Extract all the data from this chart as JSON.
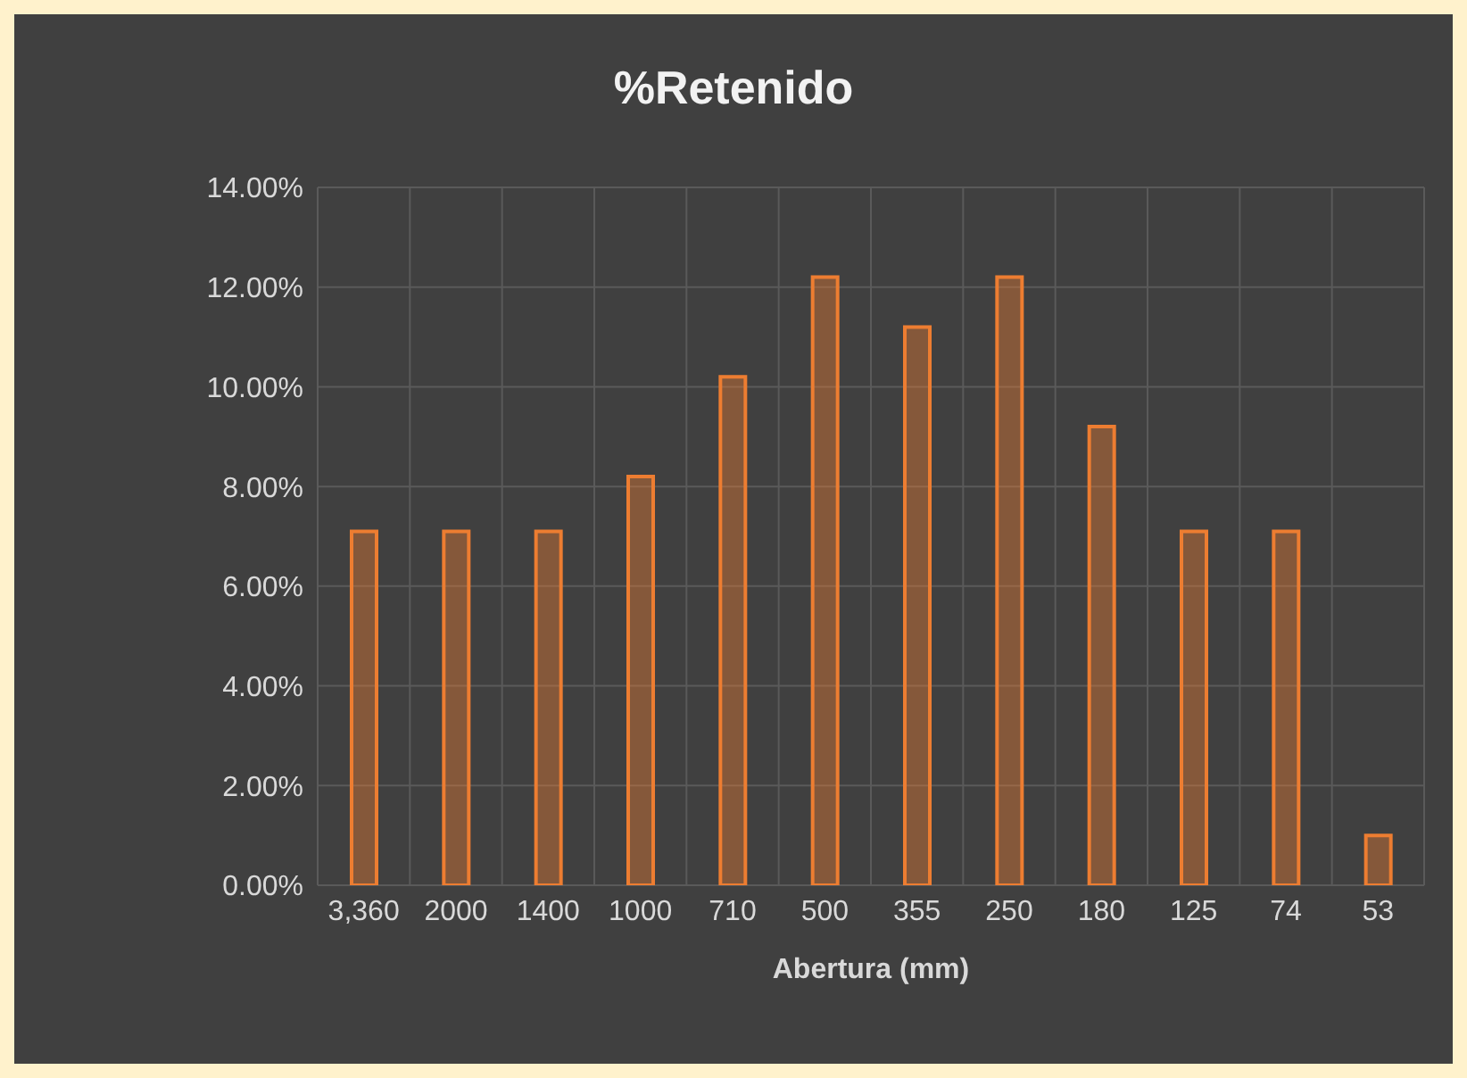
{
  "chart_data": {
    "type": "bar",
    "title": "%Retenido",
    "xlabel": "Abertura (mm)",
    "categories": [
      "3,360",
      "2000",
      "1400",
      "1000",
      "710",
      "500",
      "355",
      "250",
      "180",
      "125",
      "74",
      "53"
    ],
    "values": [
      7.1,
      7.1,
      7.1,
      8.2,
      10.2,
      12.2,
      11.2,
      12.2,
      9.2,
      7.1,
      7.1,
      1.0
    ],
    "color": "#ed7d31",
    "ylim": [
      0,
      14
    ],
    "yticks": [
      {
        "value": 0,
        "label": "0.00%"
      },
      {
        "value": 2,
        "label": "2.00%"
      },
      {
        "value": 4,
        "label": "4.00%"
      },
      {
        "value": 6,
        "label": "6.00%"
      },
      {
        "value": 8,
        "label": "8.00%"
      },
      {
        "value": 10,
        "label": "10.00%"
      },
      {
        "value": 12,
        "label": "12.00%"
      },
      {
        "value": 14,
        "label": "14.00%"
      }
    ],
    "grid": true,
    "legend": false
  }
}
